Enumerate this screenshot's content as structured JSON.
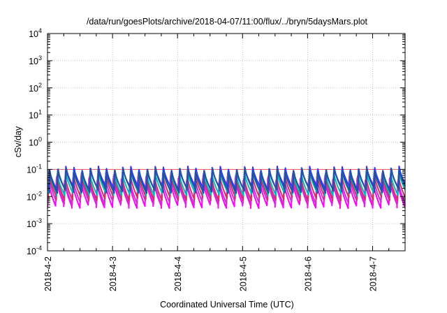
{
  "chart_data": {
    "type": "line",
    "title": "/data/run/goesPlots/archive/2018-04-07/11:00/flux/../bryn/5daysMars.plot",
    "xlabel": "Coordinated Universal Time (UTC)",
    "ylabel": "cSv/day",
    "x_ticks": [
      "2018-4-2",
      "2018-4-3",
      "2018-4-4",
      "2018-4-5",
      "2018-4-6",
      "2018-4-7"
    ],
    "xlim_days": [
      0,
      5.5
    ],
    "y_scale": "log",
    "ylim": [
      0.0001,
      10000
    ],
    "y_ticks": [
      {
        "base": "10",
        "exp": "-4"
      },
      {
        "base": "10",
        "exp": "-3"
      },
      {
        "base": "10",
        "exp": "-2"
      },
      {
        "base": "10",
        "exp": "-1"
      },
      {
        "base": "10",
        "exp": "0"
      },
      {
        "base": "10",
        "exp": "1"
      },
      {
        "base": "10",
        "exp": "2"
      },
      {
        "base": "10",
        "exp": "3"
      },
      {
        "base": "10",
        "exp": "4"
      }
    ],
    "grid": true,
    "cycle_days": 0.125,
    "series": [
      {
        "color": "#ff00ff",
        "peak": 0.04,
        "trough": 0.0045
      },
      {
        "color": "#cc33cc",
        "peak": 0.05,
        "trough": 0.0062
      },
      {
        "color": "#cc3366",
        "peak": 0.065,
        "trough": 0.0085
      },
      {
        "color": "#00bbbb",
        "peak": 0.085,
        "trough": 0.013
      },
      {
        "color": "#3333ff",
        "peak": 0.11,
        "trough": 0.02
      },
      {
        "color": "#225599",
        "peak": 0.095,
        "trough": 0.016
      }
    ],
    "reference_line": {
      "value": 0.1,
      "color": "#ee3333"
    }
  }
}
